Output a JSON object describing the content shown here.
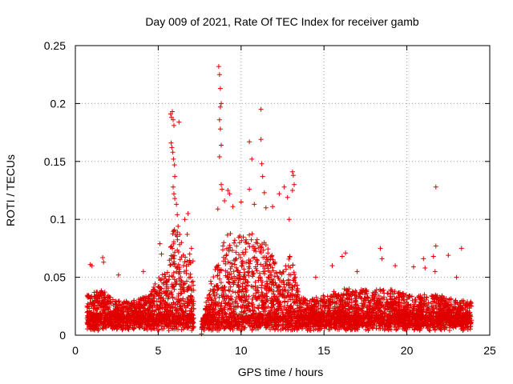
{
  "chart_data": {
    "type": "scatter",
    "title": "Day 009 of 2021, Rate Of TEC Index for receiver gamb",
    "xlabel": "GPS time / hours",
    "ylabel": "ROTI / TECUs",
    "xlim": [
      0,
      25
    ],
    "ylim": [
      0,
      0.25
    ],
    "x_ticks": [
      0,
      5,
      10,
      15,
      20,
      25
    ],
    "x_tick_labels": [
      "0",
      "5",
      "10",
      "15",
      "20",
      "25"
    ],
    "y_ticks": [
      0,
      0.05,
      0.1,
      0.15,
      0.2,
      0.25
    ],
    "y_tick_labels": [
      "0",
      "0.05",
      "0.1",
      "0.15",
      "0.2",
      "0.25"
    ],
    "grid": true,
    "marker": "+",
    "color": "#e00000",
    "envelope": {
      "description": "Approximate upper envelope of dense ROTI scatter (hour, ROTI)",
      "hours": [
        0.75,
        1.5,
        2.5,
        3.5,
        4.5,
        5.0,
        5.5,
        6.0,
        6.5,
        7.0,
        7.2,
        7.6,
        8.0,
        8.5,
        9.0,
        9.5,
        10.0,
        10.5,
        11.0,
        11.5,
        12.0,
        12.5,
        13.0,
        13.5,
        14.0,
        15.0,
        16.0,
        17.0,
        18.0,
        19.0,
        20.0,
        21.0,
        22.0,
        23.0,
        23.9
      ],
      "roti": [
        0.035,
        0.04,
        0.03,
        0.03,
        0.035,
        0.05,
        0.055,
        0.1,
        0.07,
        0.065,
        0.03,
        0.0,
        0.04,
        0.06,
        0.085,
        0.09,
        0.085,
        0.09,
        0.085,
        0.08,
        0.065,
        0.055,
        0.07,
        0.035,
        0.03,
        0.035,
        0.04,
        0.04,
        0.04,
        0.04,
        0.035,
        0.035,
        0.035,
        0.03,
        0.03
      ]
    },
    "outliers": [
      {
        "x": 0.9,
        "y": 0.061
      },
      {
        "x": 1.0,
        "y": 0.06
      },
      {
        "x": 1.65,
        "y": 0.067
      },
      {
        "x": 1.7,
        "y": 0.063
      },
      {
        "x": 2.6,
        "y": 0.052
      },
      {
        "x": 4.1,
        "y": 0.055
      },
      {
        "x": 5.1,
        "y": 0.079
      },
      {
        "x": 5.2,
        "y": 0.07
      },
      {
        "x": 5.75,
        "y": 0.191
      },
      {
        "x": 5.8,
        "y": 0.188
      },
      {
        "x": 5.85,
        "y": 0.193
      },
      {
        "x": 5.9,
        "y": 0.186
      },
      {
        "x": 5.95,
        "y": 0.181
      },
      {
        "x": 5.78,
        "y": 0.166
      },
      {
        "x": 5.82,
        "y": 0.162
      },
      {
        "x": 5.88,
        "y": 0.158
      },
      {
        "x": 5.92,
        "y": 0.152
      },
      {
        "x": 5.98,
        "y": 0.147
      },
      {
        "x": 6.0,
        "y": 0.137
      },
      {
        "x": 5.9,
        "y": 0.128
      },
      {
        "x": 5.95,
        "y": 0.122
      },
      {
        "x": 6.0,
        "y": 0.118
      },
      {
        "x": 6.1,
        "y": 0.113
      },
      {
        "x": 6.15,
        "y": 0.104
      },
      {
        "x": 6.2,
        "y": 0.094
      },
      {
        "x": 6.3,
        "y": 0.087
      },
      {
        "x": 6.4,
        "y": 0.08
      },
      {
        "x": 6.25,
        "y": 0.184
      },
      {
        "x": 6.6,
        "y": 0.1
      },
      {
        "x": 6.75,
        "y": 0.087
      },
      {
        "x": 6.8,
        "y": 0.105
      },
      {
        "x": 6.9,
        "y": 0.07
      },
      {
        "x": 7.0,
        "y": 0.075
      },
      {
        "x": 7.1,
        "y": 0.064
      },
      {
        "x": 8.65,
        "y": 0.232
      },
      {
        "x": 8.7,
        "y": 0.225
      },
      {
        "x": 8.75,
        "y": 0.213
      },
      {
        "x": 8.8,
        "y": 0.2
      },
      {
        "x": 8.75,
        "y": 0.197
      },
      {
        "x": 8.7,
        "y": 0.186
      },
      {
        "x": 8.75,
        "y": 0.178
      },
      {
        "x": 8.8,
        "y": 0.164
      },
      {
        "x": 8.7,
        "y": 0.154
      },
      {
        "x": 8.6,
        "y": 0.109
      },
      {
        "x": 8.8,
        "y": 0.13
      },
      {
        "x": 8.85,
        "y": 0.126
      },
      {
        "x": 9.2,
        "y": 0.125
      },
      {
        "x": 9.3,
        "y": 0.122
      },
      {
        "x": 9.0,
        "y": 0.116
      },
      {
        "x": 9.5,
        "y": 0.111
      },
      {
        "x": 10.0,
        "y": 0.115
      },
      {
        "x": 10.5,
        "y": 0.126
      },
      {
        "x": 10.5,
        "y": 0.167
      },
      {
        "x": 10.65,
        "y": 0.152
      },
      {
        "x": 10.8,
        "y": 0.113
      },
      {
        "x": 11.2,
        "y": 0.195
      },
      {
        "x": 11.2,
        "y": 0.169
      },
      {
        "x": 11.25,
        "y": 0.148
      },
      {
        "x": 11.3,
        "y": 0.137
      },
      {
        "x": 11.4,
        "y": 0.123
      },
      {
        "x": 11.5,
        "y": 0.11
      },
      {
        "x": 11.9,
        "y": 0.111
      },
      {
        "x": 12.3,
        "y": 0.122
      },
      {
        "x": 12.6,
        "y": 0.128
      },
      {
        "x": 12.8,
        "y": 0.119
      },
      {
        "x": 13.1,
        "y": 0.141
      },
      {
        "x": 13.15,
        "y": 0.138
      },
      {
        "x": 13.2,
        "y": 0.13
      },
      {
        "x": 13.1,
        "y": 0.125
      },
      {
        "x": 12.9,
        "y": 0.1
      },
      {
        "x": 14.5,
        "y": 0.05
      },
      {
        "x": 15.5,
        "y": 0.06
      },
      {
        "x": 16.3,
        "y": 0.071
      },
      {
        "x": 16.1,
        "y": 0.068
      },
      {
        "x": 17.0,
        "y": 0.055
      },
      {
        "x": 18.4,
        "y": 0.075
      },
      {
        "x": 18.5,
        "y": 0.066
      },
      {
        "x": 19.3,
        "y": 0.06
      },
      {
        "x": 20.4,
        "y": 0.059
      },
      {
        "x": 21.0,
        "y": 0.066
      },
      {
        "x": 21.1,
        "y": 0.058
      },
      {
        "x": 21.75,
        "y": 0.128
      },
      {
        "x": 21.75,
        "y": 0.077
      },
      {
        "x": 21.6,
        "y": 0.068
      },
      {
        "x": 21.7,
        "y": 0.055
      },
      {
        "x": 22.5,
        "y": 0.069
      },
      {
        "x": 23.0,
        "y": 0.05
      },
      {
        "x": 23.3,
        "y": 0.075
      }
    ]
  }
}
